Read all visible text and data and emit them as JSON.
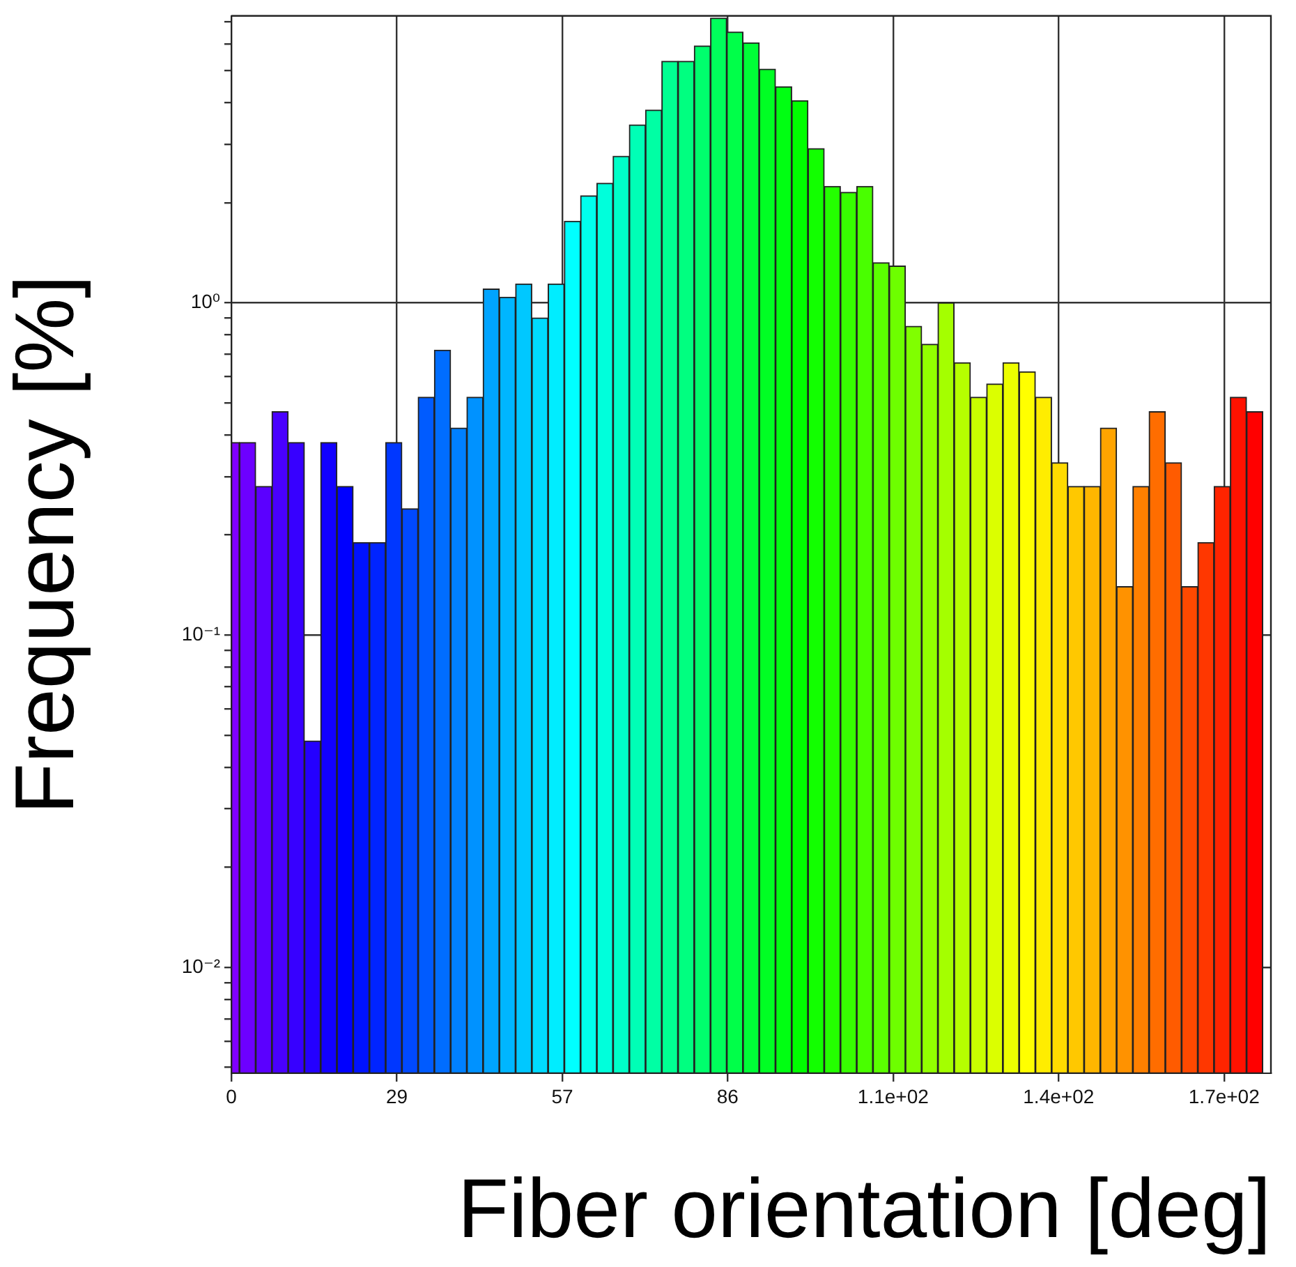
{
  "chart_data": {
    "type": "histogram",
    "xlabel": "Fiber orientation [deg]",
    "ylabel": "Frequency [%]",
    "bins": [
      0,
      1.40625,
      4.21875,
      7.03125,
      9.84375,
      12.65625,
      15.46875,
      18.28125,
      21.09375,
      23.90625,
      26.71875,
      29.53125,
      32.34375,
      35.15625,
      37.96875,
      40.78125,
      43.59375,
      46.40625,
      49.21875,
      52.03125,
      54.84375,
      57.65625,
      60.46875,
      63.28125,
      66.09375,
      68.90625,
      71.71875,
      74.53125,
      77.34375,
      80.15625,
      82.96875,
      85.78125,
      88.59375,
      91.40625,
      94.21875,
      97.03125,
      99.84375,
      102.65625,
      105.46875,
      108.28125,
      111.09375,
      113.90625,
      116.71875,
      119.53125,
      122.34375,
      125.15625,
      127.96875,
      130.78125,
      133.59375,
      136.40625,
      139.21875,
      142.03125,
      144.84375,
      147.65625,
      150.46875,
      153.28125,
      156.09375,
      158.90625,
      161.71875,
      164.53125,
      167.34375,
      170.15625,
      172.96875,
      175.78125,
      178.59375
    ],
    "values": [
      0.38,
      0.38,
      0.28,
      0.47,
      0.38,
      0.048,
      0.38,
      0.28,
      0.19,
      0.19,
      0.38,
      0.24,
      0.52,
      0.72,
      0.42,
      0.52,
      1.1,
      1.04,
      1.14,
      0.9,
      1.14,
      1.76,
      2.1,
      2.29,
      2.76,
      3.43,
      3.8,
      5.33,
      5.33,
      5.93,
      7.19,
      6.53,
      6.06,
      5.05,
      4.47,
      4.06,
      2.91,
      2.24,
      2.15,
      2.24,
      1.32,
      1.29,
      0.85,
      0.75,
      1.0,
      0.66,
      0.52,
      0.57,
      0.66,
      0.62,
      0.52,
      0.33,
      0.28,
      0.28,
      0.42,
      0.14,
      0.28,
      0.47,
      0.33,
      0.14,
      0.19,
      0.28,
      0.52,
      0.47
    ],
    "colors": [
      "#8000ff",
      "#6d00ff",
      "#5b00ff",
      "#4900ff",
      "#3700ff",
      "#2400ff",
      "#1200ff",
      "#0000ff",
      "#0012ff",
      "#0024ff",
      "#0037ff",
      "#0049ff",
      "#005bff",
      "#006dff",
      "#0080ff",
      "#0092ff",
      "#00a4ff",
      "#00b6ff",
      "#00c8ff",
      "#00dbff",
      "#00edff",
      "#00ffff",
      "#00ffed",
      "#00ffdb",
      "#00ffc8",
      "#00ffb6",
      "#00ffa4",
      "#00ff92",
      "#00ff80",
      "#00ff6d",
      "#00ff5b",
      "#00ff49",
      "#00ff37",
      "#00ff24",
      "#00ff12",
      "#00ff00",
      "#12ff00",
      "#24ff00",
      "#37ff00",
      "#49ff00",
      "#5bff00",
      "#6dff00",
      "#80ff00",
      "#92ff00",
      "#a4ff00",
      "#b6ff00",
      "#c8ff00",
      "#dbff00",
      "#edff00",
      "#ffff00",
      "#ffed00",
      "#ffdb00",
      "#ffc800",
      "#ffb600",
      "#ffa400",
      "#ff9200",
      "#ff8000",
      "#ff6d00",
      "#ff5b00",
      "#ff4900",
      "#ff3700",
      "#ff2400",
      "#ff1200",
      "#ff0000"
    ],
    "xlim": [
      0,
      180
    ],
    "ylim": [
      0.0048,
      7.3
    ],
    "xticks": [
      0,
      {
        "value": 28.65,
        "label": "29"
      },
      {
        "value": 57.3,
        "label": "57"
      },
      {
        "value": 85.94,
        "label": "86"
      },
      {
        "value": 114.59,
        "label": "1.1e+02"
      },
      {
        "value": 143.24,
        "label": "1.4e+02"
      },
      {
        "value": 171.89,
        "label": "1.7e+02"
      }
    ],
    "yticks": [
      {
        "value": 0.005,
        "label": null
      },
      {
        "value": 0.006,
        "label": null
      },
      {
        "value": 0.007,
        "label": null
      },
      {
        "value": 0.008,
        "label": null
      },
      {
        "value": 0.009,
        "label": null
      },
      {
        "value": 0.01,
        "label": "10⁻²"
      },
      {
        "value": 0.02,
        "label": null
      },
      {
        "value": 0.03,
        "label": null
      },
      {
        "value": 0.04,
        "label": null
      },
      {
        "value": 0.05,
        "label": null
      },
      {
        "value": 0.06,
        "label": null
      },
      {
        "value": 0.07,
        "label": null
      },
      {
        "value": 0.08,
        "label": null
      },
      {
        "value": 0.09,
        "label": null
      },
      {
        "value": 0.1,
        "label": "10⁻¹"
      },
      {
        "value": 0.2,
        "label": null
      },
      {
        "value": 0.3,
        "label": null
      },
      {
        "value": 0.4,
        "label": null
      },
      {
        "value": 0.5,
        "label": null
      },
      {
        "value": 0.6,
        "label": null
      },
      {
        "value": 0.7,
        "label": null
      },
      {
        "value": 0.8,
        "label": null
      },
      {
        "value": 0.9,
        "label": null
      },
      {
        "value": 1,
        "label": "10⁰"
      },
      {
        "value": 2,
        "label": null
      },
      {
        "value": 3,
        "label": null
      },
      {
        "value": 4,
        "label": null
      },
      {
        "value": 5,
        "label": null
      },
      {
        "value": 6,
        "label": null
      },
      {
        "value": 7,
        "label": null
      }
    ],
    "log": true,
    "grid": true
  }
}
